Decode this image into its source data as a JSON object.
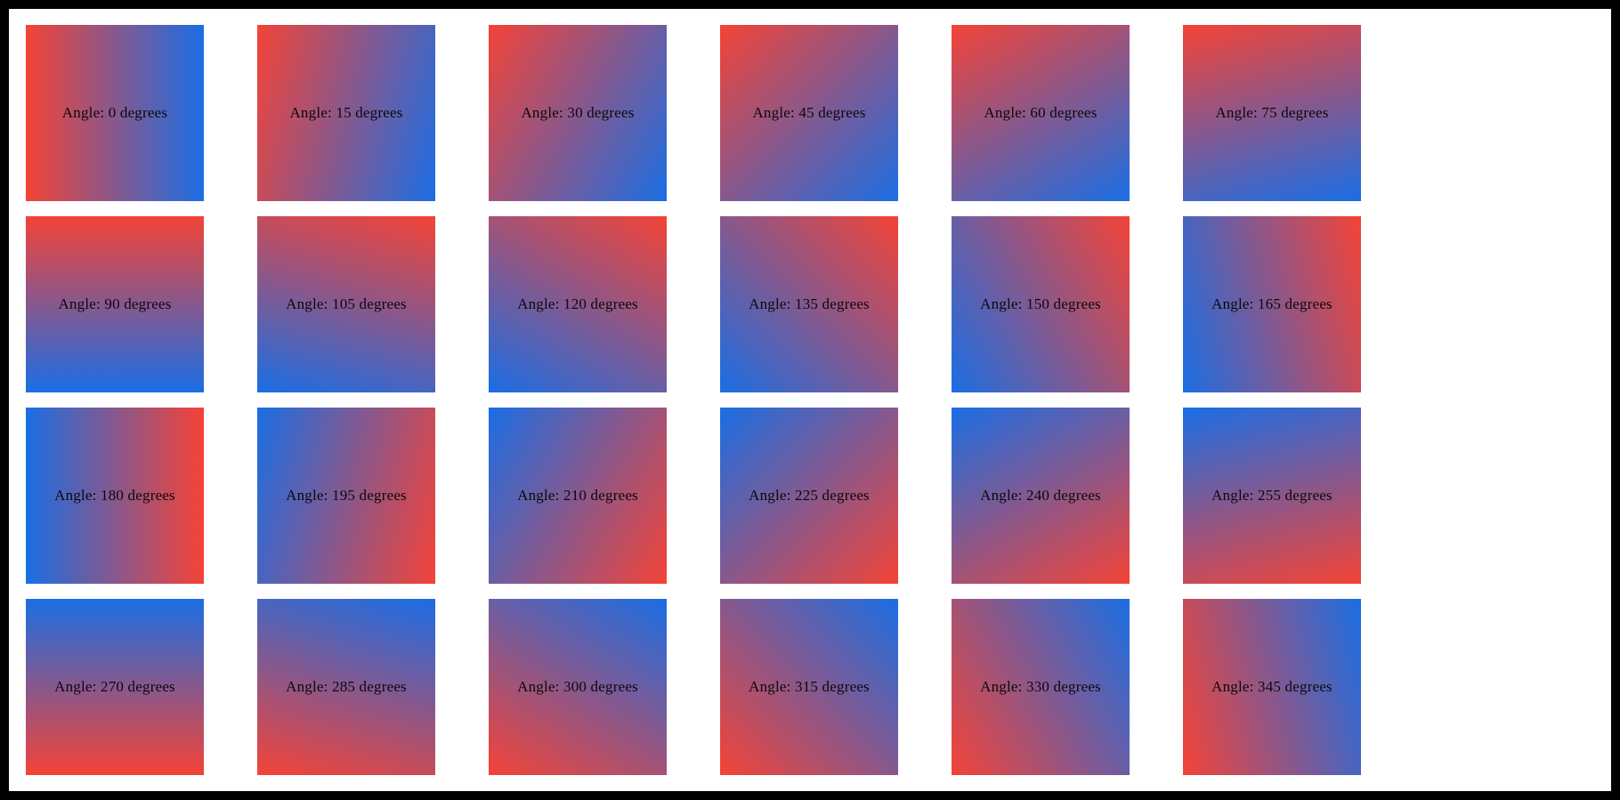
{
  "page": {
    "frame_color": "#000000",
    "background_color": "#ffffff",
    "text_color": "#0a0a0a"
  },
  "gradient": {
    "start_color": "#f44336",
    "end_color": "#1a6ee4"
  },
  "tiles": [
    {
      "angle": 0,
      "label": "Angle: 0 degrees"
    },
    {
      "angle": 15,
      "label": "Angle: 15 degrees"
    },
    {
      "angle": 30,
      "label": "Angle: 30 degrees"
    },
    {
      "angle": 45,
      "label": "Angle: 45 degrees"
    },
    {
      "angle": 60,
      "label": "Angle: 60 degrees"
    },
    {
      "angle": 75,
      "label": "Angle: 75 degrees"
    },
    {
      "angle": 90,
      "label": "Angle: 90 degrees"
    },
    {
      "angle": 105,
      "label": "Angle: 105 degrees"
    },
    {
      "angle": 120,
      "label": "Angle: 120 degrees"
    },
    {
      "angle": 135,
      "label": "Angle: 135 degrees"
    },
    {
      "angle": 150,
      "label": "Angle: 150 degrees"
    },
    {
      "angle": 165,
      "label": "Angle: 165 degrees"
    },
    {
      "angle": 180,
      "label": "Angle: 180 degrees"
    },
    {
      "angle": 195,
      "label": "Angle: 195 degrees"
    },
    {
      "angle": 210,
      "label": "Angle: 210 degrees"
    },
    {
      "angle": 225,
      "label": "Angle: 225 degrees"
    },
    {
      "angle": 240,
      "label": "Angle: 240 degrees"
    },
    {
      "angle": 255,
      "label": "Angle: 255 degrees"
    },
    {
      "angle": 270,
      "label": "Angle: 270 degrees"
    },
    {
      "angle": 285,
      "label": "Angle: 285 degrees"
    },
    {
      "angle": 300,
      "label": "Angle: 300 degrees"
    },
    {
      "angle": 315,
      "label": "Angle: 315 degrees"
    },
    {
      "angle": 330,
      "label": "Angle: 330 degrees"
    },
    {
      "angle": 345,
      "label": "Angle: 345 degrees"
    }
  ]
}
